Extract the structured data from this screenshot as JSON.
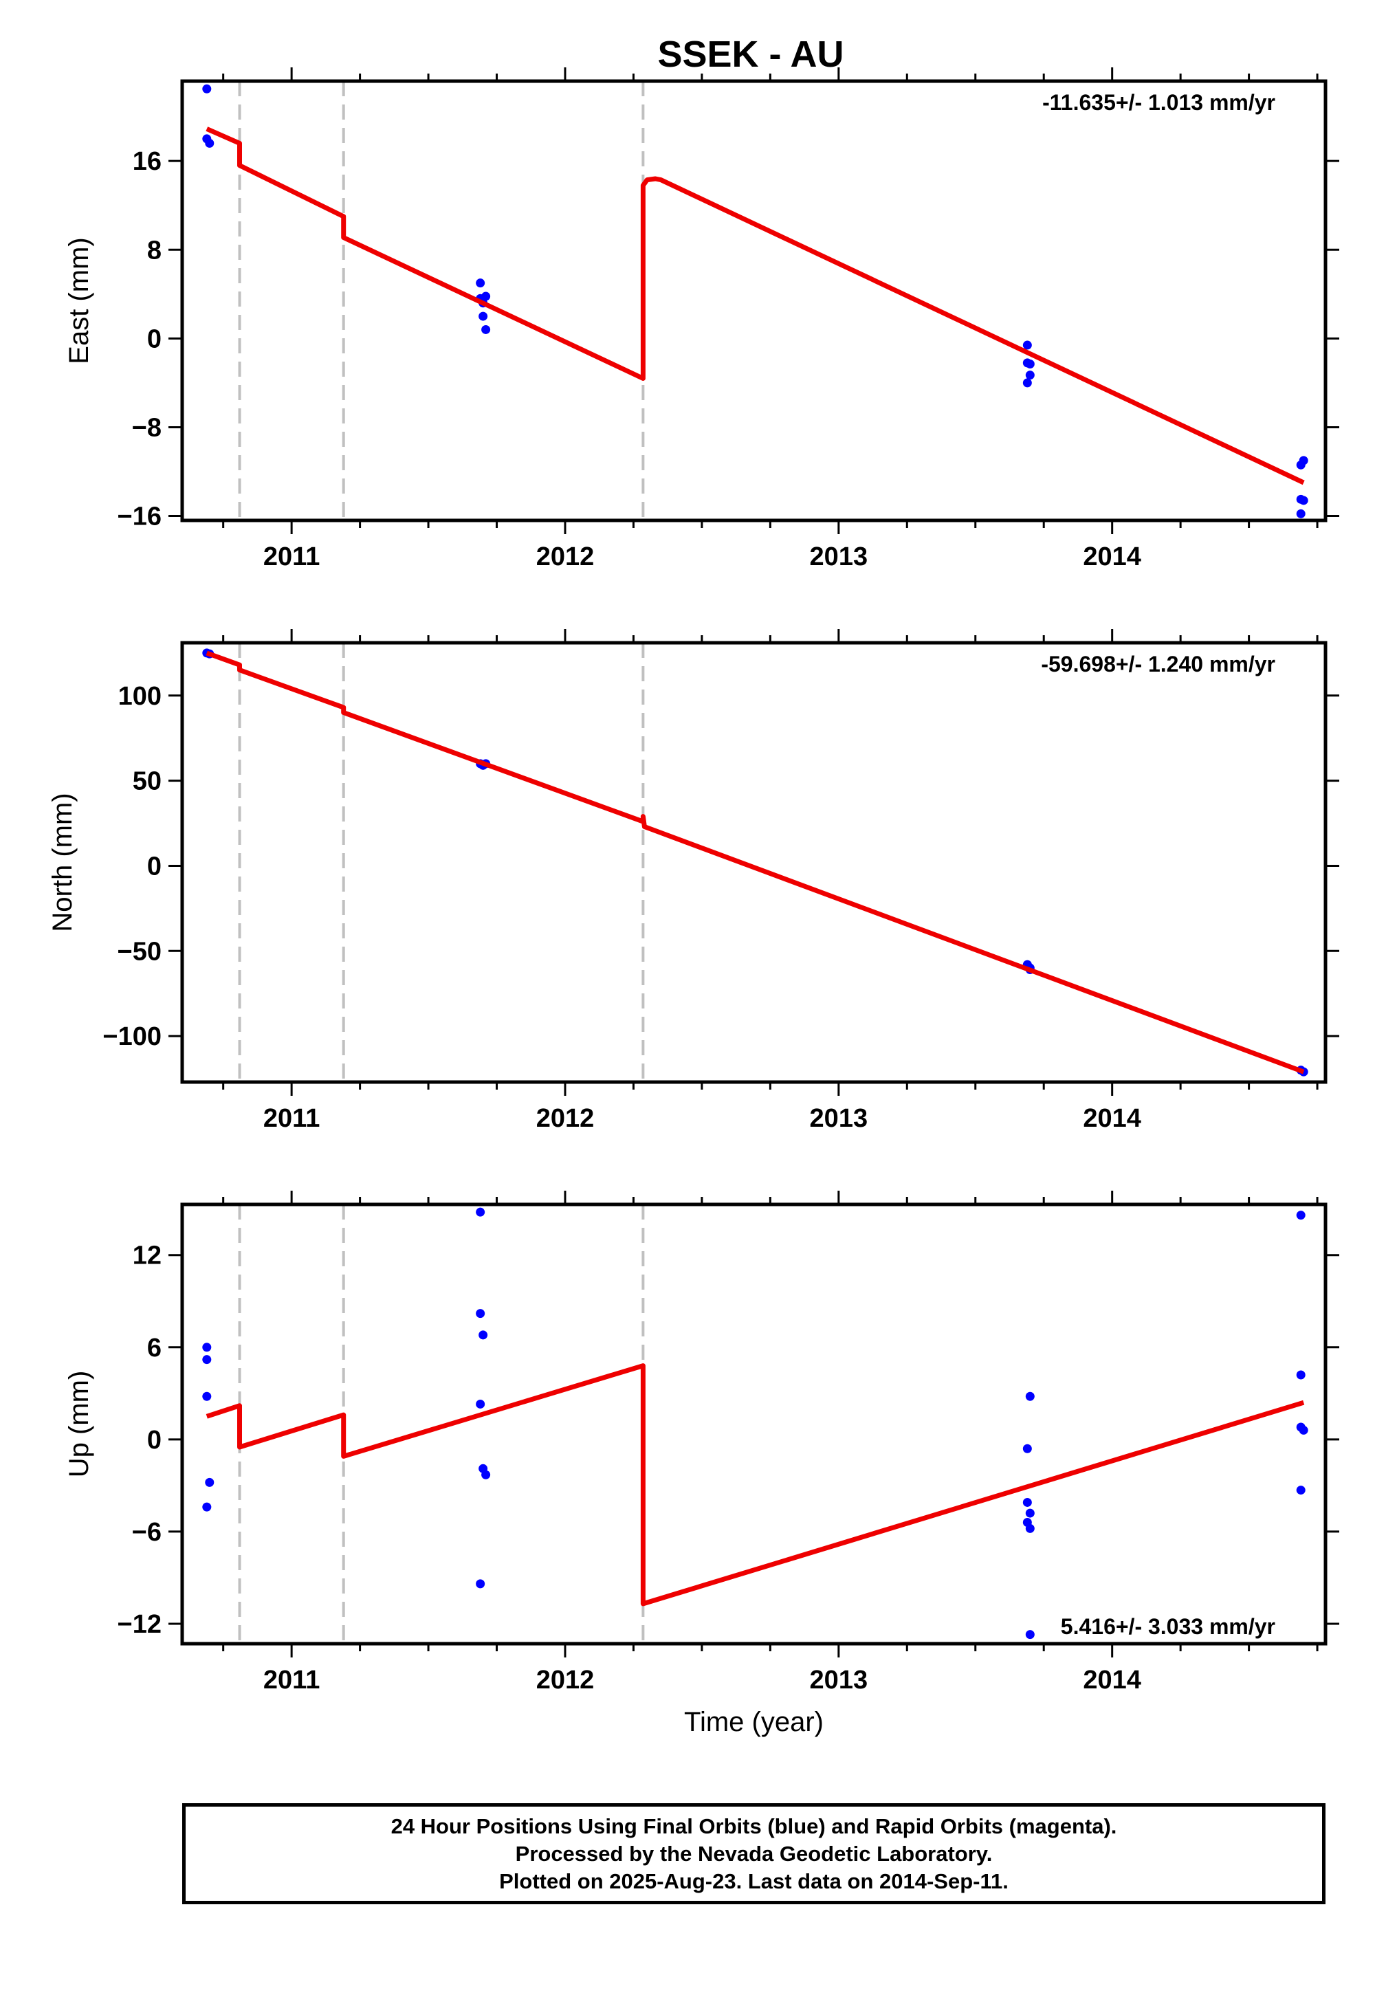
{
  "title": "SSEK - AU",
  "chart_data": [
    {
      "type": "scatter",
      "ylabel": "East (mm)",
      "xlim": [
        2010.6,
        2014.78
      ],
      "ylim": [
        -16.4,
        23.2
      ],
      "yticks": [
        16,
        8,
        0,
        -8,
        -16
      ],
      "tick_labels_y": [
        "16",
        "8",
        "0",
        "−8",
        "−16"
      ],
      "xticks": [
        2011,
        2012,
        2013,
        2014
      ],
      "tick_labels_x": [
        "2011",
        "2012",
        "2013",
        "2014"
      ],
      "rate_label": "-11.635+/- 1.013 mm/yr",
      "steps_x": [
        2010.81,
        2011.19,
        2012.285
      ],
      "points": [
        [
          2010.69,
          22.5
        ],
        [
          2010.69,
          18.0
        ],
        [
          2010.7,
          17.6
        ],
        [
          2011.69,
          5.0
        ],
        [
          2011.69,
          3.6
        ],
        [
          2011.7,
          3.2
        ],
        [
          2011.7,
          2.0
        ],
        [
          2011.71,
          3.8
        ],
        [
          2011.71,
          0.8
        ],
        [
          2013.69,
          -0.6
        ],
        [
          2013.69,
          -2.2
        ],
        [
          2013.69,
          -4.0
        ],
        [
          2013.7,
          -2.3
        ],
        [
          2013.7,
          -3.3
        ],
        [
          2014.69,
          -11.4
        ],
        [
          2014.7,
          -11.0
        ],
        [
          2014.69,
          -14.5
        ],
        [
          2014.7,
          -14.6
        ],
        [
          2014.69,
          -15.8
        ]
      ],
      "model": [
        [
          2010.69,
          18.9
        ],
        [
          2010.81,
          17.6
        ],
        [
          2010.81,
          15.6
        ],
        [
          2011.19,
          11.0
        ],
        [
          2011.19,
          9.1
        ],
        [
          2012.285,
          -3.6
        ],
        [
          2012.285,
          13.8
        ],
        [
          2012.3,
          14.3
        ],
        [
          2012.33,
          14.4
        ],
        [
          2012.35,
          14.3
        ],
        [
          2014.7,
          -13.0
        ]
      ],
      "series": [
        {
          "name": "",
          "values": []
        }
      ]
    },
    {
      "type": "scatter",
      "ylabel": "North (mm)",
      "xlim": [
        2010.6,
        2014.78
      ],
      "ylim": [
        -127,
        131
      ],
      "yticks": [
        100,
        50,
        0,
        -50,
        -100
      ],
      "tick_labels_y": [
        "100",
        "50",
        "0",
        "−50",
        "−100"
      ],
      "xticks": [
        2011,
        2012,
        2013,
        2014
      ],
      "tick_labels_x": [
        "2011",
        "2012",
        "2013",
        "2014"
      ],
      "rate_label": "-59.698+/- 1.240 mm/yr",
      "steps_x": [
        2010.81,
        2011.19,
        2012.285
      ],
      "points": [
        [
          2010.69,
          125
        ],
        [
          2010.7,
          124.5
        ],
        [
          2011.69,
          60
        ],
        [
          2011.7,
          59
        ],
        [
          2011.71,
          60
        ],
        [
          2013.69,
          -58
        ],
        [
          2013.7,
          -60
        ],
        [
          2013.7,
          -61
        ],
        [
          2014.69,
          -120
        ],
        [
          2014.7,
          -121
        ]
      ],
      "model": [
        [
          2010.69,
          125
        ],
        [
          2010.81,
          118
        ],
        [
          2010.81,
          115
        ],
        [
          2011.19,
          93
        ],
        [
          2011.19,
          90
        ],
        [
          2012.285,
          26
        ],
        [
          2012.285,
          29
        ],
        [
          2012.29,
          23
        ],
        [
          2014.7,
          -121
        ]
      ]
    },
    {
      "type": "scatter",
      "ylabel": "Up (mm)",
      "xlabel": "Time (year)",
      "xlim": [
        2010.6,
        2014.78
      ],
      "ylim": [
        -13.3,
        15.3
      ],
      "yticks": [
        12,
        6,
        0,
        -6,
        -12
      ],
      "tick_labels_y": [
        "12",
        "6",
        "0",
        "−6",
        "−12"
      ],
      "xticks": [
        2011,
        2012,
        2013,
        2014
      ],
      "tick_labels_x": [
        "2011",
        "2012",
        "2013",
        "2014"
      ],
      "rate_label": "5.416+/- 3.033 mm/yr",
      "steps_x": [
        2010.81,
        2011.19,
        2012.285
      ],
      "points": [
        [
          2010.69,
          6.0
        ],
        [
          2010.69,
          5.2
        ],
        [
          2010.69,
          2.8
        ],
        [
          2010.7,
          -2.8
        ],
        [
          2010.69,
          -4.4
        ],
        [
          2011.69,
          14.8
        ],
        [
          2011.69,
          8.2
        ],
        [
          2011.7,
          6.8
        ],
        [
          2011.69,
          2.3
        ],
        [
          2011.7,
          -1.9
        ],
        [
          2011.71,
          -2.3
        ],
        [
          2011.69,
          -9.4
        ],
        [
          2013.69,
          -0.6
        ],
        [
          2013.7,
          2.8
        ],
        [
          2013.69,
          -4.1
        ],
        [
          2013.7,
          -4.8
        ],
        [
          2013.69,
          -5.4
        ],
        [
          2013.7,
          -5.8
        ],
        [
          2013.7,
          -12.7
        ],
        [
          2014.69,
          14.6
        ],
        [
          2014.69,
          4.2
        ],
        [
          2014.69,
          0.8
        ],
        [
          2014.7,
          0.6
        ],
        [
          2014.69,
          -3.3
        ]
      ],
      "model": [
        [
          2010.69,
          1.5
        ],
        [
          2010.81,
          2.2
        ],
        [
          2010.81,
          -0.5
        ],
        [
          2011.19,
          1.6
        ],
        [
          2011.19,
          -1.1
        ],
        [
          2012.285,
          4.8
        ],
        [
          2012.285,
          -10.7
        ],
        [
          2014.7,
          2.4
        ]
      ]
    }
  ],
  "colors": {
    "data_points": "#0000ff",
    "model_line": "#ee0000",
    "step_lines": "#c0c0c0",
    "axes": "#000000"
  },
  "footer": {
    "line1": "24 Hour Positions Using Final Orbits (blue) and Rapid Orbits (magenta).",
    "line2": "Processed by the Nevada Geodetic Laboratory.",
    "line3": "Plotted on 2025-Aug-23. Last data on 2014-Sep-11."
  }
}
